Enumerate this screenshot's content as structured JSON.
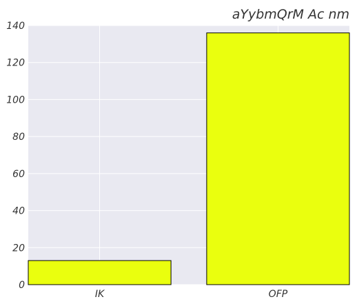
{
  "chart_data": {
    "type": "bar",
    "title": "aYybmQrM Ac nm",
    "xlabel": "",
    "ylabel": "",
    "categories": [
      "IK",
      "OFP"
    ],
    "values": [
      13,
      136
    ],
    "ylim": [
      0,
      140
    ],
    "yticks": [
      0,
      20,
      40,
      60,
      80,
      100,
      120,
      140
    ],
    "grid": true,
    "legend": "none",
    "colors": {
      "bar_fill": "#eaff0e",
      "bar_edge": "#000000",
      "plot_background": "#e9e9f1",
      "grid": "#ffffff",
      "text": "#333333"
    }
  }
}
